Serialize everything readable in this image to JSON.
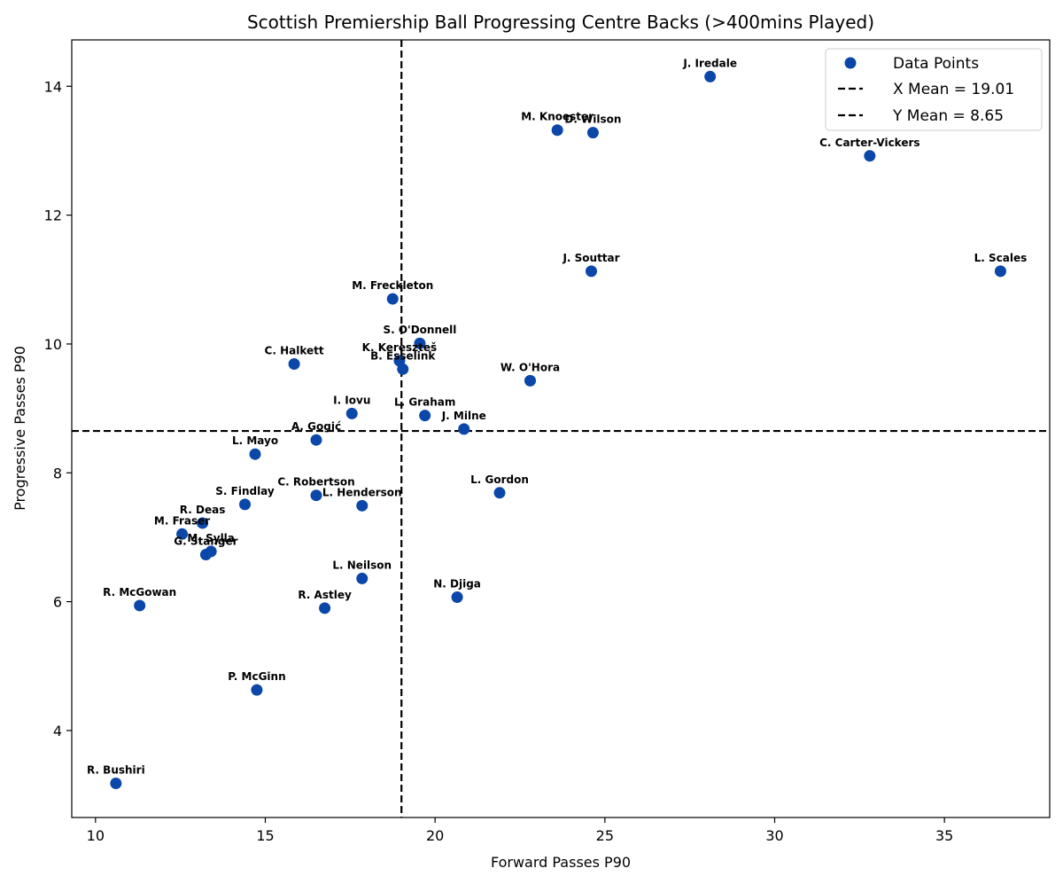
{
  "chart_data": {
    "type": "scatter",
    "title": "Scottish Premiership Ball Progressing Centre Backs (>400mins Played)",
    "xlabel": "Forward Passes P90",
    "ylabel": "Progressive Passes P90",
    "xlim": [
      9.3,
      38.1
    ],
    "ylim": [
      2.65,
      14.72
    ],
    "xticks": [
      10,
      15,
      20,
      25,
      30,
      35
    ],
    "yticks": [
      4,
      6,
      8,
      10,
      12,
      14
    ],
    "point_color": "#0a47a9",
    "x_mean": 19.01,
    "y_mean": 8.65,
    "legend": {
      "placement": "top-right",
      "entries": [
        "Data Points",
        "X Mean = 19.01",
        "Y Mean = 8.65"
      ]
    },
    "points": [
      {
        "name": "J. Iredale",
        "x": 28.1,
        "y": 14.15
      },
      {
        "name": "M. Knoester",
        "x": 23.6,
        "y": 13.32
      },
      {
        "name": "D. Wilson",
        "x": 24.65,
        "y": 13.28
      },
      {
        "name": "C. Carter-Vickers",
        "x": 32.8,
        "y": 12.92
      },
      {
        "name": "J. Souttar",
        "x": 24.6,
        "y": 11.13
      },
      {
        "name": "L. Scales",
        "x": 36.65,
        "y": 11.13
      },
      {
        "name": "M. Freckleton",
        "x": 18.75,
        "y": 10.7
      },
      {
        "name": "S. O'Donnell",
        "x": 19.55,
        "y": 10.01
      },
      {
        "name": "K. Kereszteš",
        "x": 18.95,
        "y": 9.74
      },
      {
        "name": "B. Esselink",
        "x": 19.05,
        "y": 9.61
      },
      {
        "name": "C. Halkett",
        "x": 15.85,
        "y": 9.69
      },
      {
        "name": "W. O'Hora",
        "x": 22.8,
        "y": 9.43
      },
      {
        "name": "I. Iovu",
        "x": 17.55,
        "y": 8.92
      },
      {
        "name": "L. Graham",
        "x": 19.7,
        "y": 8.89
      },
      {
        "name": "J. Milne",
        "x": 20.85,
        "y": 8.68
      },
      {
        "name": "A. Gogić",
        "x": 16.5,
        "y": 8.51
      },
      {
        "name": "L. Mayo",
        "x": 14.7,
        "y": 8.29
      },
      {
        "name": "L. Gordon",
        "x": 21.9,
        "y": 7.69
      },
      {
        "name": "C. Robertson",
        "x": 16.5,
        "y": 7.65
      },
      {
        "name": "L. Henderson",
        "x": 17.85,
        "y": 7.49
      },
      {
        "name": "S. Findlay",
        "x": 14.4,
        "y": 7.51
      },
      {
        "name": "R. Deas",
        "x": 13.15,
        "y": 7.22
      },
      {
        "name": "M. Fraser",
        "x": 12.55,
        "y": 7.05
      },
      {
        "name": "M. Sylla",
        "x": 13.4,
        "y": 6.78
      },
      {
        "name": "G. Stanger",
        "x": 13.25,
        "y": 6.73
      },
      {
        "name": "L. Neilson",
        "x": 17.85,
        "y": 6.36
      },
      {
        "name": "N. Djiga",
        "x": 20.65,
        "y": 6.07
      },
      {
        "name": "R. McGowan",
        "x": 11.3,
        "y": 5.94
      },
      {
        "name": "R. Astley",
        "x": 16.75,
        "y": 5.9
      },
      {
        "name": "P. McGinn",
        "x": 14.75,
        "y": 4.63
      },
      {
        "name": "R. Bushiri",
        "x": 10.6,
        "y": 3.18
      }
    ]
  }
}
